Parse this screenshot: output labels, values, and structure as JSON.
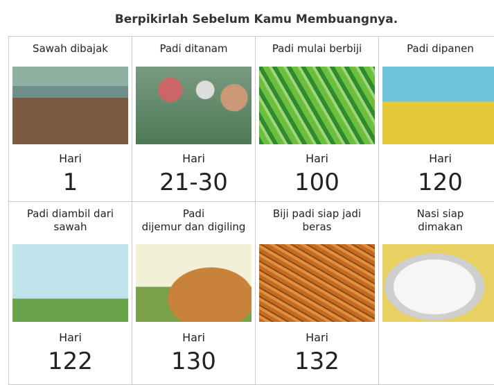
{
  "title": "Berpikirlah Sebelum Kamu Membuangnya.",
  "cards": [
    {
      "label": [
        "Sawah dibajak"
      ],
      "day_label": "Hari",
      "day": "1"
    },
    {
      "label": [
        "Padi ditanam"
      ],
      "day_label": "Hari",
      "day": "21-30"
    },
    {
      "label": [
        "Padi mulai berbiji"
      ],
      "day_label": "Hari",
      "day": "100"
    },
    {
      "label": [
        "Padi dipanen"
      ],
      "day_label": "Hari",
      "day": "120"
    },
    {
      "label": [
        "Padi diambil dari",
        "sawah"
      ],
      "day_label": "Hari",
      "day": "122"
    },
    {
      "label": [
        "Padi",
        "dijemur dan digiling"
      ],
      "day_label": "Hari",
      "day": "130"
    },
    {
      "label": [
        "Biji padi siap jadi",
        "beras"
      ],
      "day_label": "Hari",
      "day": "132"
    },
    {
      "label": [
        "Nasi siap",
        "dimakan"
      ]
    }
  ]
}
